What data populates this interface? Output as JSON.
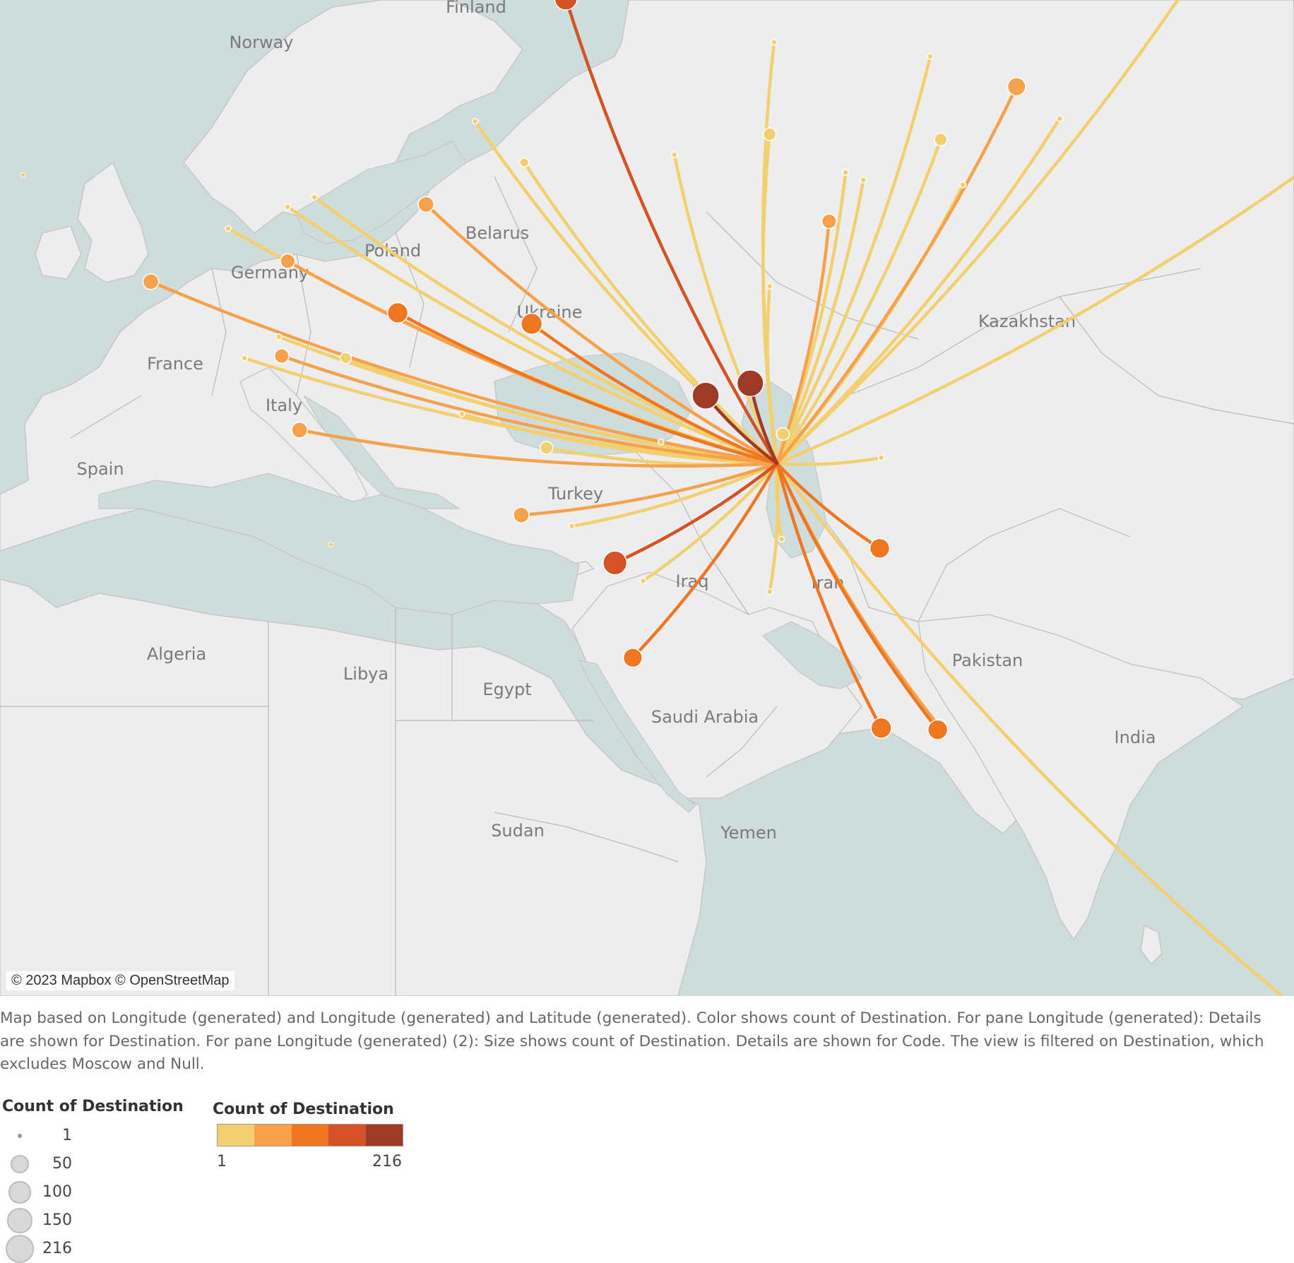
{
  "map": {
    "attribution": "© 2023 Mapbox © OpenStreetMap",
    "country_labels": [
      "Finland",
      "Norway",
      "Belarus",
      "Poland",
      "Germany",
      "Ukraine",
      "France",
      "Italy",
      "Spain",
      "Kazakhstan",
      "Turkey",
      "Iraq",
      "Iran",
      "Algeria",
      "Libya",
      "Egypt",
      "Saudi Arabia",
      "Pakistan",
      "India",
      "Sudan",
      "Yemen"
    ],
    "colors": {
      "water": "#cfdcdc",
      "land": "#ededed",
      "border": "#b8b8b8",
      "ramp": [
        "#f3d06f",
        "#f6a14b",
        "#ef7722",
        "#d55226",
        "#9e3b27"
      ]
    },
    "origin": {
      "lon": 44.5,
      "lat": 40.2
    },
    "routes": [
      {
        "lon": 30.3,
        "lat": 59.9,
        "count": 140
      },
      {
        "lon": 24.2,
        "lat": 55.5,
        "count": 1
      },
      {
        "lon": 27.5,
        "lat": 53.9,
        "count": 10
      },
      {
        "lon": 20.9,
        "lat": 52.2,
        "count": 55
      },
      {
        "lon": 13.4,
        "lat": 52.5,
        "count": 1
      },
      {
        "lon": 11.6,
        "lat": 52.1,
        "count": 1
      },
      {
        "lon": 7.6,
        "lat": 51.2,
        "count": 1
      },
      {
        "lon": 11.6,
        "lat": 49.8,
        "count": 45
      },
      {
        "lon": 2.4,
        "lat": 48.9,
        "count": 55
      },
      {
        "lon": 19.0,
        "lat": 47.5,
        "count": 110
      },
      {
        "lon": 28.0,
        "lat": 47.0,
        "count": 120
      },
      {
        "lon": 11.0,
        "lat": 46.4,
        "count": 1
      },
      {
        "lon": 8.7,
        "lat": 45.4,
        "count": 1
      },
      {
        "lon": 11.2,
        "lat": 45.5,
        "count": 45
      },
      {
        "lon": 15.5,
        "lat": 45.4,
        "count": 20
      },
      {
        "lon": 12.4,
        "lat": 41.9,
        "count": 55
      },
      {
        "lon": 23.3,
        "lat": 42.7,
        "count": 1
      },
      {
        "lon": 29.0,
        "lat": 41.0,
        "count": 30
      },
      {
        "lon": 27.3,
        "lat": 37.5,
        "count": 55
      },
      {
        "lon": 30.7,
        "lat": 36.9,
        "count": 1
      },
      {
        "lon": 33.6,
        "lat": 34.9,
        "count": 160
      },
      {
        "lon": 35.5,
        "lat": 33.9,
        "count": 1
      },
      {
        "lon": 34.8,
        "lat": 29.5,
        "count": 90
      },
      {
        "lon": 39.7,
        "lat": 43.6,
        "count": 216
      },
      {
        "lon": 42.7,
        "lat": 44.2,
        "count": 210
      },
      {
        "lon": 44.9,
        "lat": 41.7,
        "count": 30
      },
      {
        "lon": 44.8,
        "lat": 36.2,
        "count": 1
      },
      {
        "lon": 44.0,
        "lat": 33.3,
        "count": 1
      },
      {
        "lon": 44.0,
        "lat": 48.7,
        "count": 1
      },
      {
        "lon": 44.0,
        "lat": 55.0,
        "count": 30
      },
      {
        "lon": 37.6,
        "lat": 54.2,
        "count": 1
      },
      {
        "lon": 49.1,
        "lat": 53.5,
        "count": 1
      },
      {
        "lon": 50.3,
        "lat": 53.2,
        "count": 1
      },
      {
        "lon": 48.0,
        "lat": 51.5,
        "count": 45
      },
      {
        "lon": 55.5,
        "lat": 54.8,
        "count": 30
      },
      {
        "lon": 54.8,
        "lat": 57.9,
        "count": 1
      },
      {
        "lon": 60.6,
        "lat": 56.8,
        "count": 80
      },
      {
        "lon": 63.5,
        "lat": 55.6,
        "count": 1
      },
      {
        "lon": 73.4,
        "lat": 61.3,
        "count": 1
      },
      {
        "lon": 57.0,
        "lat": 53.0,
        "count": 1
      },
      {
        "lon": 83.0,
        "lat": 54.9,
        "count": 1
      },
      {
        "lon": 51.5,
        "lat": 40.5,
        "count": 1
      },
      {
        "lon": 51.4,
        "lat": 35.7,
        "count": 100
      },
      {
        "lon": 51.5,
        "lat": 25.3,
        "count": 110
      },
      {
        "lon": 55.3,
        "lat": 25.2,
        "count": 100
      },
      {
        "lon": 55.4,
        "lat": 25.4,
        "count": 45
      },
      {
        "lon": 79.9,
        "lat": 6.9,
        "count": 1
      },
      {
        "lon": 36.7,
        "lat": 41.3,
        "count": 1
      },
      {
        "lon": 44.3,
        "lat": 58.4,
        "count": 1
      }
    ],
    "stray_dots": [
      {
        "lon": -6.2,
        "lat": 53.4
      },
      {
        "lon": 14.5,
        "lat": 35.9
      }
    ]
  },
  "caption": "Map based on Longitude (generated) and Longitude (generated) and Latitude (generated).  Color shows count of Destination.  For pane Longitude (generated):  Details are shown for Destination.  For pane Longitude (generated) (2):  Size shows count of Destination.  Details are shown for Code. The view is filtered on Destination, which excludes Moscow and Null.",
  "size_legend": {
    "title": "Count of Destination",
    "items": [
      "1",
      "50",
      "100",
      "150",
      "216"
    ]
  },
  "color_legend": {
    "title": "Count of Destination",
    "min_label": "1",
    "max_label": "216"
  }
}
